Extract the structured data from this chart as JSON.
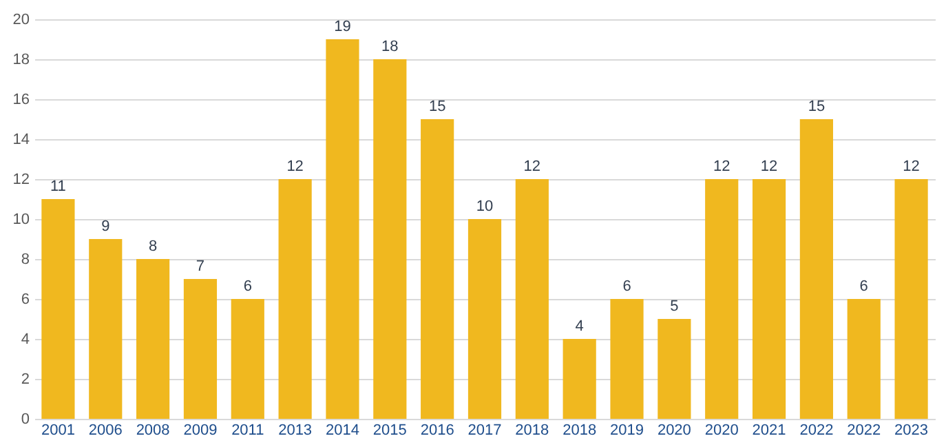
{
  "chart_data": {
    "type": "bar",
    "categories": [
      "2001",
      "2006",
      "2008",
      "2009",
      "2011",
      "2013",
      "2014",
      "2015",
      "2016",
      "2017",
      "2018",
      "2018",
      "2019",
      "2020",
      "2020",
      "2021",
      "2022",
      "2022",
      "2023"
    ],
    "values": [
      11,
      9,
      8,
      7,
      6,
      12,
      19,
      18,
      15,
      10,
      12,
      4,
      6,
      5,
      12,
      12,
      15,
      6,
      12
    ],
    "color": "#f0b81f",
    "ylim": [
      0,
      20
    ],
    "yticks": [
      0,
      2,
      4,
      6,
      8,
      10,
      12,
      14,
      16,
      18,
      20
    ],
    "grid": "y",
    "data_labels": true
  }
}
